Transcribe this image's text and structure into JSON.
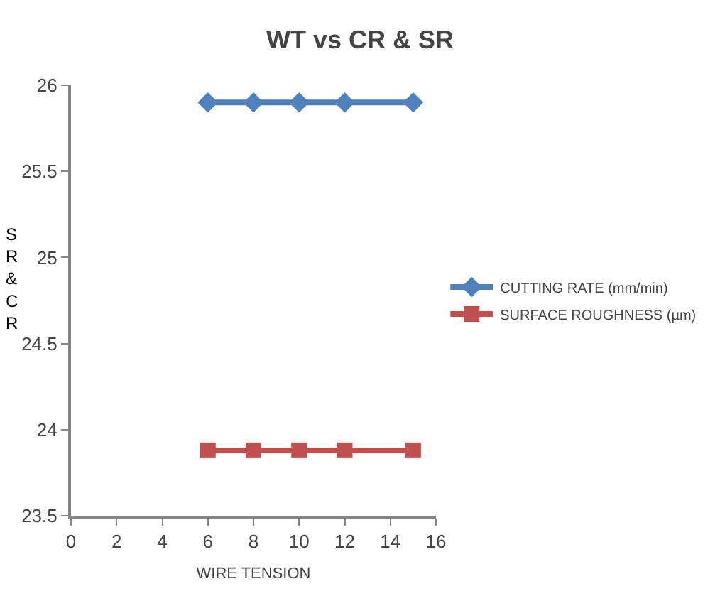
{
  "chart_data": {
    "type": "line",
    "title": "WT vs CR & SR",
    "xlabel": "WIRE TENSION",
    "ylabel": "SR & CR",
    "x": [
      6,
      8,
      10,
      12,
      15
    ],
    "series": [
      {
        "name": "CUTTING RATE (mm/min)",
        "color": "#4f81bd",
        "marker": "diamond",
        "values": [
          25.9,
          25.9,
          25.9,
          25.9,
          25.9
        ]
      },
      {
        "name": "SURFACE ROUGHNESS (µm)",
        "color": "#c0504d",
        "marker": "square",
        "values": [
          23.88,
          23.88,
          23.88,
          23.88,
          23.88
        ]
      }
    ],
    "xlim": [
      0,
      16
    ],
    "xticks": [
      0,
      2,
      4,
      6,
      8,
      10,
      12,
      14,
      16
    ],
    "ylim": [
      23.5,
      26
    ],
    "yticks": [
      23.5,
      24,
      24.5,
      25,
      25.5,
      26
    ],
    "grid": false,
    "legend": "right",
    "line_style": "solid"
  }
}
